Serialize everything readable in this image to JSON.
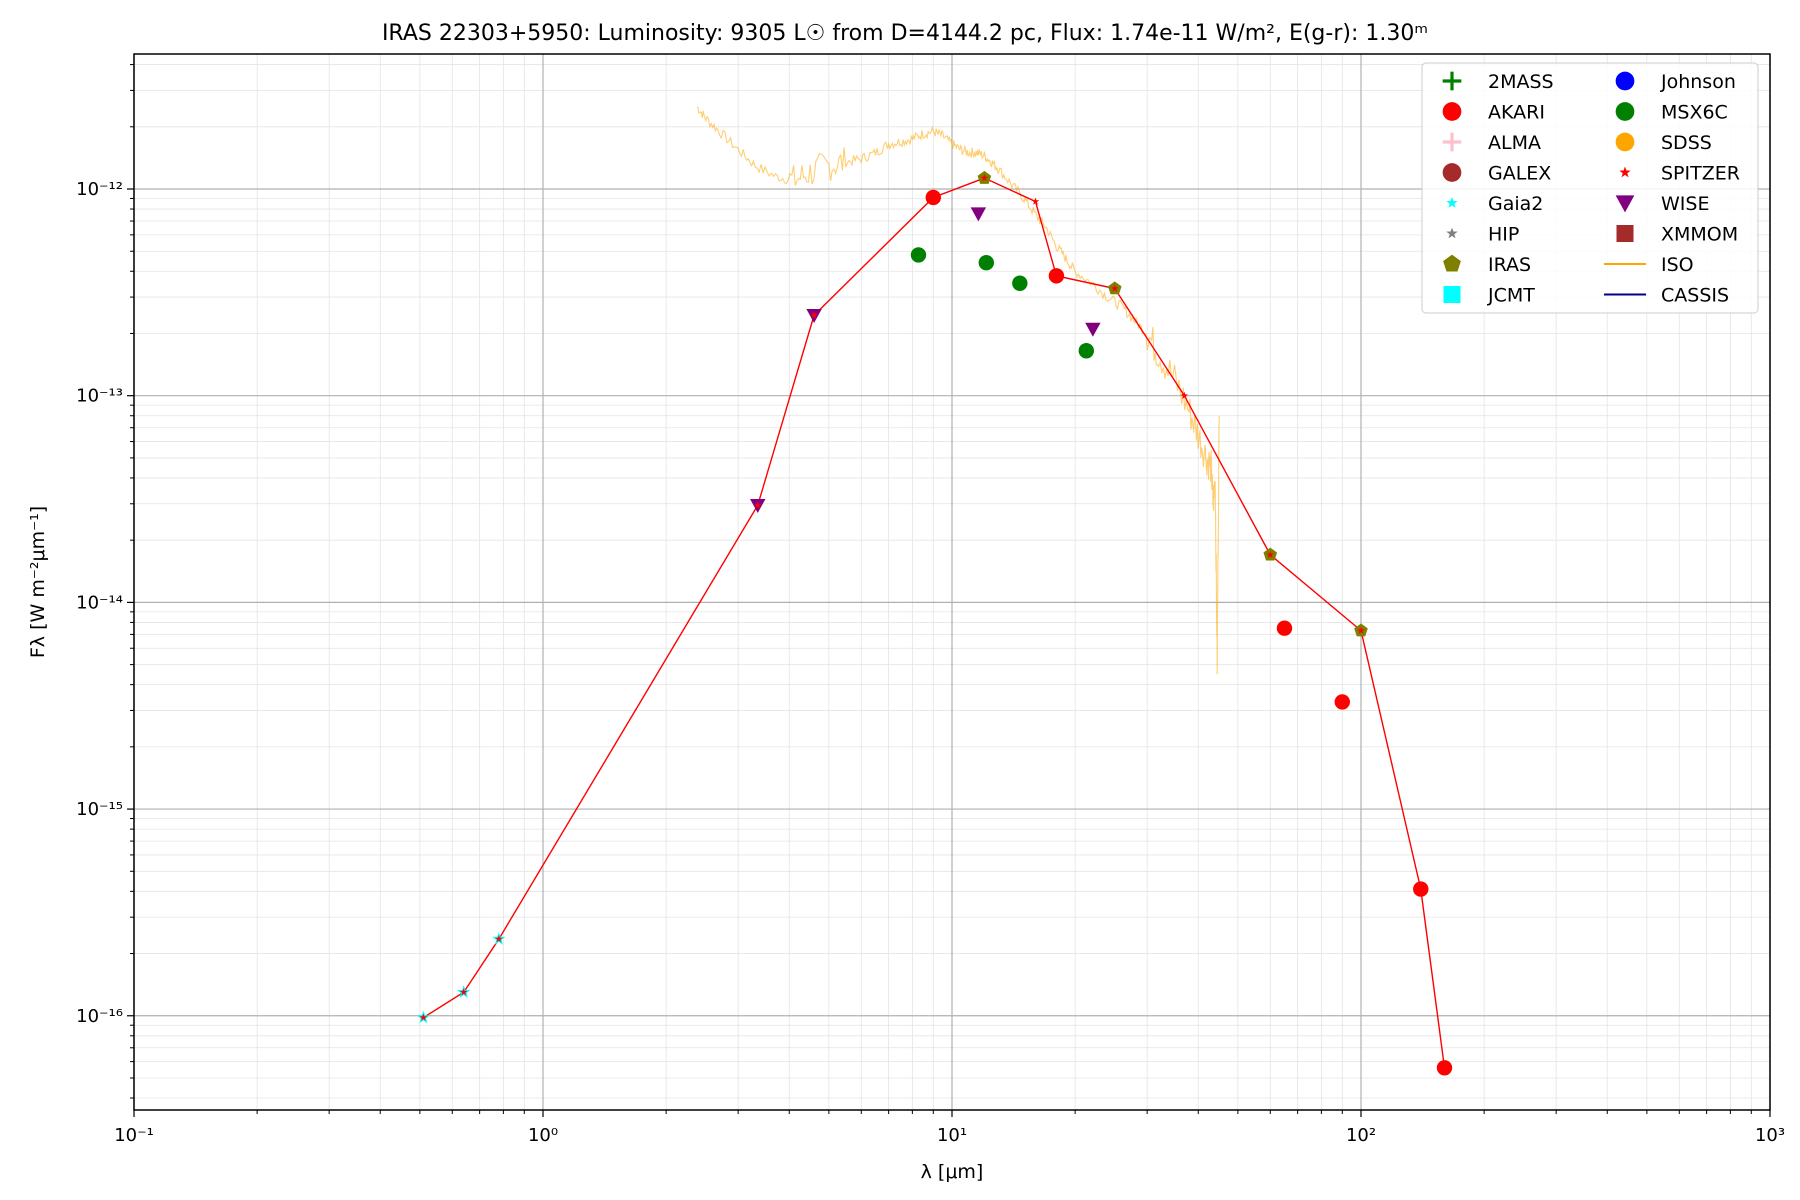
{
  "chart_data": {
    "type": "scatter",
    "title": "IRAS 22303+5950:  Luminosity: 9305 L☉ from D=4144.2 pc, Flux: 1.74e-11 W/m², E(g-r): 1.30ᵐ",
    "xlabel": "λ [μm]",
    "ylabel": "Fλ [W m⁻²μm⁻¹]",
    "xscale": "log",
    "yscale": "log",
    "xlim": [
      0.1,
      1000
    ],
    "ylim": [
      3.5e-17,
      4.5e-12
    ],
    "x_ticks": [
      {
        "value": 0.1,
        "label": "10⁻¹"
      },
      {
        "value": 1,
        "label": "10⁰"
      },
      {
        "value": 10,
        "label": "10¹"
      },
      {
        "value": 100,
        "label": "10²"
      },
      {
        "value": 1000,
        "label": "10³"
      }
    ],
    "y_ticks": [
      {
        "value": 1e-16,
        "label": "10⁻¹⁶"
      },
      {
        "value": 1e-15,
        "label": "10⁻¹⁵"
      },
      {
        "value": 1e-14,
        "label": "10⁻¹⁴"
      },
      {
        "value": 1e-13,
        "label": "10⁻¹³"
      },
      {
        "value": 1e-12,
        "label": "10⁻¹²"
      }
    ],
    "grid": true,
    "legend_position": "top-right",
    "legend": [
      {
        "name": "2MASS",
        "marker": "plus",
        "color": "#008000"
      },
      {
        "name": "AKARI",
        "marker": "circle",
        "color": "#ff0000"
      },
      {
        "name": "ALMA",
        "marker": "plus",
        "color": "#ffc0cb"
      },
      {
        "name": "GALEX",
        "marker": "circle",
        "color": "#a52a2a"
      },
      {
        "name": "Gaia2",
        "marker": "star",
        "color": "#00ffff"
      },
      {
        "name": "HIP",
        "marker": "star",
        "color": "#808080"
      },
      {
        "name": "IRAS",
        "marker": "pentagon",
        "color": "#808000"
      },
      {
        "name": "JCMT",
        "marker": "square",
        "color": "#00ffff"
      },
      {
        "name": "Johnson",
        "marker": "circle",
        "color": "#0000ff"
      },
      {
        "name": "MSX6C",
        "marker": "circle",
        "color": "#008000"
      },
      {
        "name": "SDSS",
        "marker": "circle",
        "color": "#ffa500"
      },
      {
        "name": "SPITZER",
        "marker": "star",
        "color": "#ff0000"
      },
      {
        "name": "WISE",
        "marker": "triangle-down",
        "color": "#800080"
      },
      {
        "name": "XMMOM",
        "marker": "square",
        "color": "#a52a2a"
      },
      {
        "name": "ISO",
        "marker": "line",
        "color": "#ffa500"
      },
      {
        "name": "CASSIS",
        "marker": "line",
        "color": "#00008b"
      }
    ],
    "points": [
      {
        "series": "AKARI",
        "x": 9.0,
        "y": 9.1e-13
      },
      {
        "series": "AKARI",
        "x": 18.0,
        "y": 3.8e-13
      },
      {
        "series": "AKARI",
        "x": 65.0,
        "y": 7.5e-15
      },
      {
        "series": "AKARI",
        "x": 90.0,
        "y": 3.3e-15
      },
      {
        "series": "AKARI",
        "x": 140.0,
        "y": 4.1e-16
      },
      {
        "series": "AKARI",
        "x": 160.0,
        "y": 5.6e-17
      },
      {
        "series": "MSX6C",
        "x": 8.28,
        "y": 4.8e-13
      },
      {
        "series": "MSX6C",
        "x": 12.13,
        "y": 4.4e-13
      },
      {
        "series": "MSX6C",
        "x": 14.65,
        "y": 3.5e-13
      },
      {
        "series": "MSX6C",
        "x": 21.3,
        "y": 1.65e-13
      },
      {
        "series": "WISE",
        "x": 3.35,
        "y": 2.95e-14
      },
      {
        "series": "WISE",
        "x": 4.6,
        "y": 2.45e-13
      },
      {
        "series": "WISE",
        "x": 11.6,
        "y": 7.6e-13
      },
      {
        "series": "WISE",
        "x": 22.1,
        "y": 2.1e-13
      },
      {
        "series": "IRAS",
        "x": 12.0,
        "y": 1.13e-12
      },
      {
        "series": "IRAS",
        "x": 25.0,
        "y": 3.3e-13
      },
      {
        "series": "IRAS",
        "x": 60.0,
        "y": 1.7e-14
      },
      {
        "series": "IRAS",
        "x": 100.0,
        "y": 7.3e-15
      },
      {
        "series": "Gaia2",
        "x": 0.51,
        "y": 9.8e-17
      },
      {
        "series": "Gaia2",
        "x": 0.64,
        "y": 1.3e-16
      },
      {
        "series": "Gaia2",
        "x": 0.78,
        "y": 2.35e-16
      },
      {
        "series": "SPITZER",
        "x": 0.51,
        "y": 9.8e-17
      },
      {
        "series": "SPITZER",
        "x": 0.64,
        "y": 1.3e-16
      },
      {
        "series": "SPITZER",
        "x": 0.78,
        "y": 2.35e-16
      },
      {
        "series": "SPITZER",
        "x": 3.35,
        "y": 2.95e-14
      },
      {
        "series": "SPITZER",
        "x": 4.6,
        "y": 2.45e-13
      },
      {
        "series": "SPITZER",
        "x": 12.0,
        "y": 1.13e-12
      },
      {
        "series": "SPITZER",
        "x": 16.0,
        "y": 8.7e-13
      },
      {
        "series": "SPITZER",
        "x": 25.0,
        "y": 3.3e-13
      },
      {
        "series": "SPITZER",
        "x": 37.0,
        "y": 1e-13
      },
      {
        "series": "SPITZER",
        "x": 60.0,
        "y": 1.7e-14
      },
      {
        "series": "SPITZER",
        "x": 100.0,
        "y": 7.3e-15
      }
    ],
    "sed_line": {
      "color": "#ff0000",
      "x": [
        0.51,
        0.64,
        0.78,
        3.35,
        4.6,
        9.0,
        12.0,
        16.0,
        18.0,
        25.0,
        37.0,
        60.0,
        100.0,
        140.0,
        160.0
      ],
      "y": [
        9.8e-17,
        1.3e-16,
        2.35e-16,
        2.95e-14,
        2.45e-13,
        9.1e-13,
        1.13e-12,
        8.7e-13,
        3.8e-13,
        3.3e-13,
        1e-13,
        1.7e-14,
        7.3e-15,
        4.1e-16,
        5.6e-17
      ]
    },
    "iso_spectrum": {
      "color": "#ffa500",
      "x": [
        2.38,
        2.5,
        2.7,
        3.0,
        3.3,
        3.7,
        4.1,
        4.5,
        5.0,
        5.5,
        6.0,
        6.5,
        7.0,
        7.5,
        8.0,
        8.5,
        9.0,
        9.5,
        10.0,
        10.5,
        11.0,
        11.5,
        12.0,
        12.5,
        13.0,
        14.0,
        15.0,
        16.0,
        17.0,
        18.0,
        19.0,
        20.0,
        22.0,
        24.0,
        26.0,
        28.0,
        30.0,
        32.0,
        35.0,
        38.0,
        40.0,
        42.0,
        43.0,
        43.5,
        44.0,
        44.5,
        45.0
      ],
      "y": [
        2.5e-12,
        2.2e-12,
        1.9e-12,
        1.55e-12,
        1.3e-12,
        1.15e-12,
        1.1e-12,
        1.2e-12,
        1.3e-12,
        1.35e-12,
        1.4e-12,
        1.5e-12,
        1.65e-12,
        1.7e-12,
        1.75e-12,
        1.85e-12,
        1.9e-12,
        1.8e-12,
        1.65e-12,
        1.55e-12,
        1.5e-12,
        1.5e-12,
        1.45e-12,
        1.35e-12,
        1.25e-12,
        1.05e-12,
        9e-13,
        7.5e-13,
        6.5e-13,
        5.3e-13,
        4.6e-13,
        4e-13,
        3.5e-13,
        3e-13,
        2.7e-13,
        2.3e-13,
        2e-13,
        1.6e-13,
        1.2e-13,
        8.5e-14,
        6.5e-14,
        5e-14,
        4.5e-14,
        3e-14,
        4e-14,
        5e-15,
        8e-14
      ]
    }
  }
}
